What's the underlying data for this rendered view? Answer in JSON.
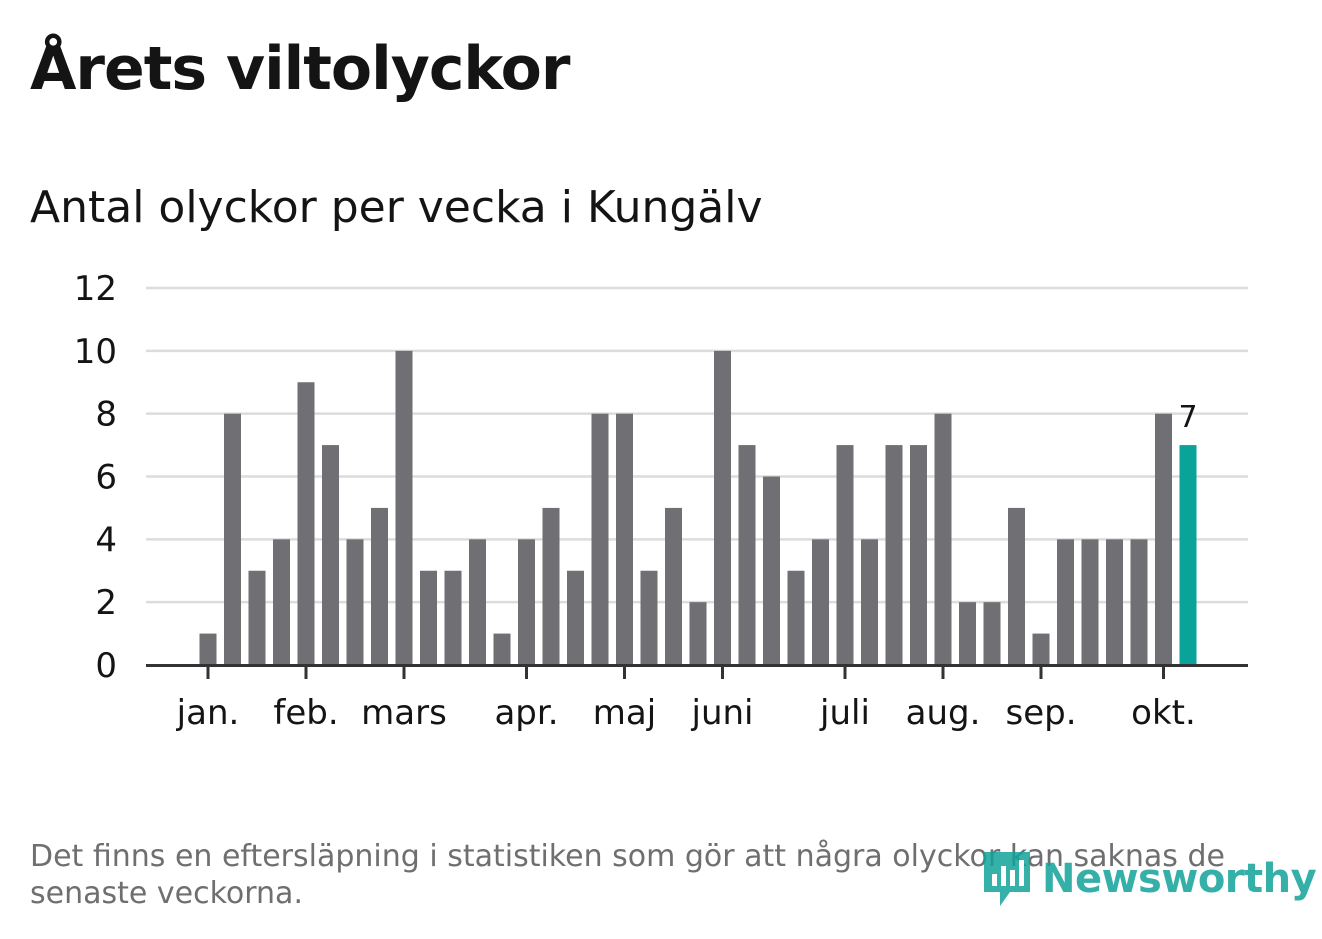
{
  "header": {
    "title": "Årets viltolyckor",
    "subtitle": "Antal olyckor per vecka i Kungälv"
  },
  "footer": {
    "note": "Det finns en eftersläpning i statistiken som gör att några olyckor kan saknas de senaste veckorna.",
    "logo_text": "Newsworthy",
    "logo_icon": "bar-chart-speech-bubble-icon"
  },
  "colors": {
    "bar": "#6f6f74",
    "highlight": "#0aa39a",
    "grid": "#dcdcdc",
    "axis": "#333333",
    "text": "#141414",
    "muted": "#6f6f72",
    "brand": "#12a39a"
  },
  "chart_data": {
    "type": "bar",
    "title": "",
    "xlabel": "",
    "ylabel": "",
    "ylim": [
      0,
      12
    ],
    "yticks": [
      0,
      2,
      4,
      6,
      8,
      10,
      12
    ],
    "grid": true,
    "x_unit": "week",
    "week_start": 1,
    "values": [
      1,
      8,
      3,
      4,
      9,
      7,
      4,
      5,
      10,
      3,
      3,
      4,
      1,
      4,
      5,
      3,
      8,
      8,
      3,
      5,
      2,
      10,
      7,
      6,
      3,
      4,
      7,
      4,
      7,
      7,
      8,
      2,
      2,
      5,
      1,
      4,
      4,
      4,
      4,
      8,
      7
    ],
    "highlight_index": 40,
    "highlight_label": "7",
    "month_ticks": [
      {
        "label": "jan.",
        "week": 1
      },
      {
        "label": "feb.",
        "week": 5
      },
      {
        "label": "mars",
        "week": 9
      },
      {
        "label": "apr.",
        "week": 14
      },
      {
        "label": "maj",
        "week": 18
      },
      {
        "label": "juni",
        "week": 22
      },
      {
        "label": "juli",
        "week": 27
      },
      {
        "label": "aug.",
        "week": 31
      },
      {
        "label": "sep.",
        "week": 35
      },
      {
        "label": "okt.",
        "week": 40
      }
    ]
  }
}
